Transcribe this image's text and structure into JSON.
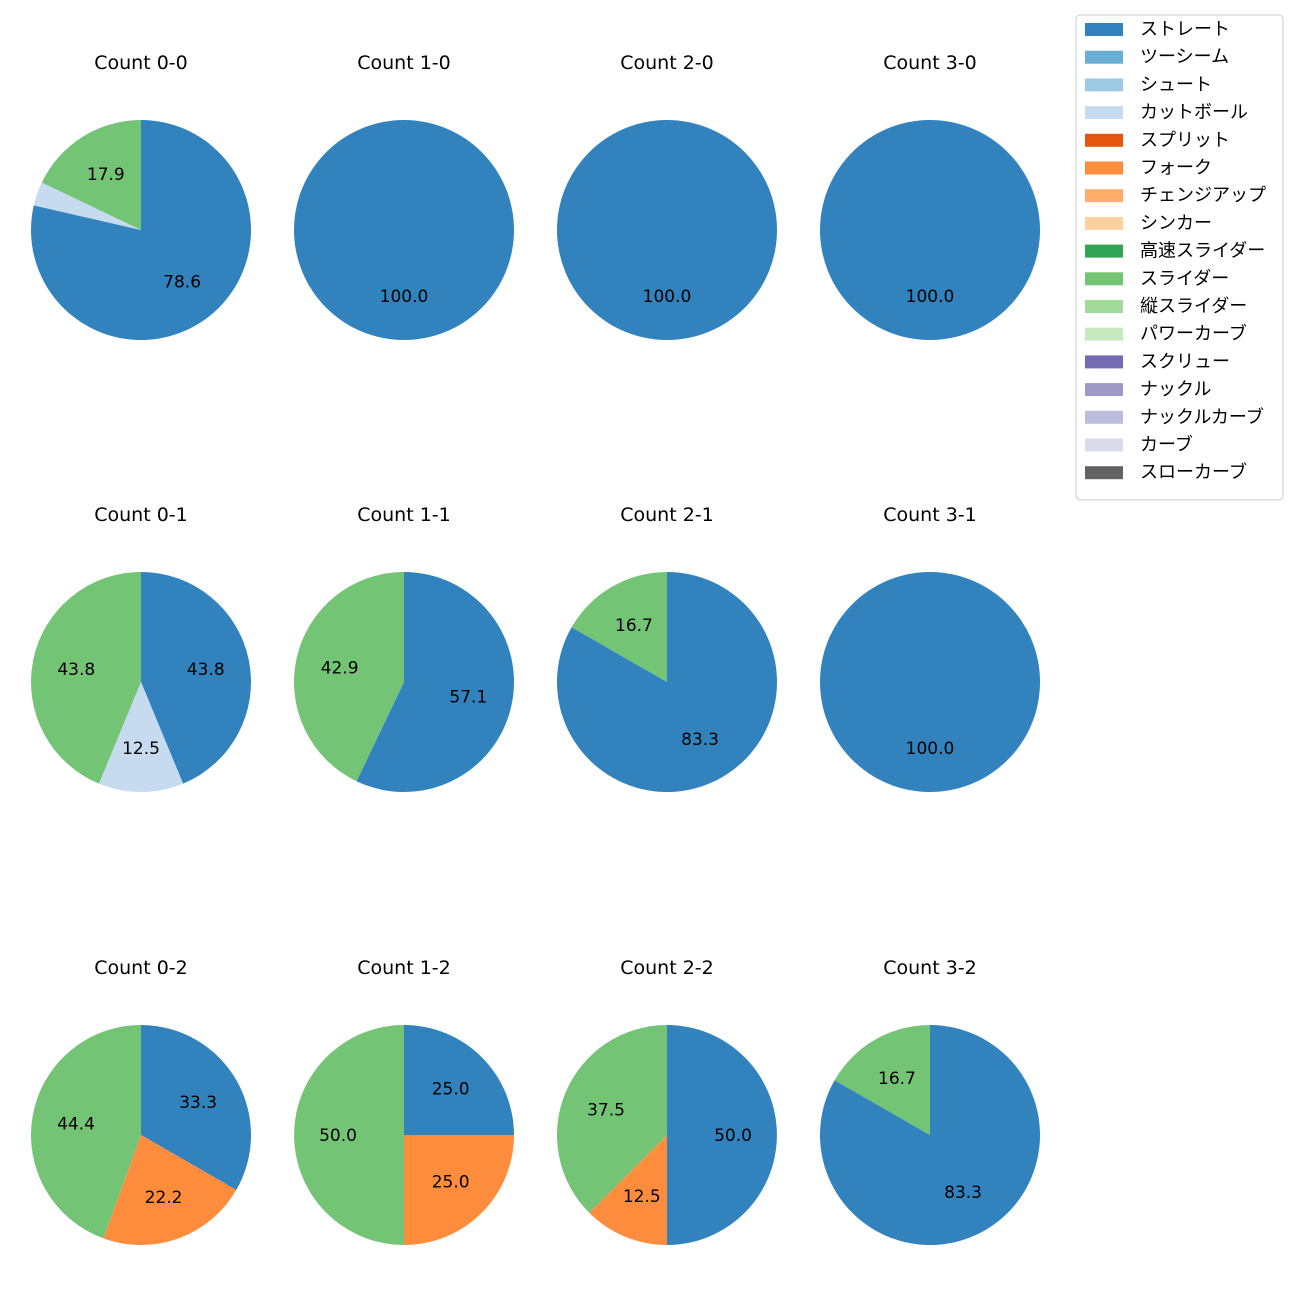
{
  "chart_data": {
    "type": "pie",
    "legend": {
      "placement": "top-right",
      "entries": [
        {
          "name": "ストレート",
          "color": "#3182bd"
        },
        {
          "name": "ツーシーム",
          "color": "#6baed6"
        },
        {
          "name": "シュート",
          "color": "#9ecae1"
        },
        {
          "name": "カットボール",
          "color": "#c6dbef"
        },
        {
          "name": "スプリット",
          "color": "#e6550d"
        },
        {
          "name": "フォーク",
          "color": "#fd8d3c"
        },
        {
          "name": "チェンジアップ",
          "color": "#fdae6b"
        },
        {
          "name": "シンカー",
          "color": "#fdd0a2"
        },
        {
          "name": "高速スライダー",
          "color": "#31a354"
        },
        {
          "name": "スライダー",
          "color": "#74c476"
        },
        {
          "name": "縦スライダー",
          "color": "#a1d99b"
        },
        {
          "name": "パワーカーブ",
          "color": "#c7e9c0"
        },
        {
          "name": "スクリュー",
          "color": "#756bb1"
        },
        {
          "name": "ナックル",
          "color": "#9e9ac8"
        },
        {
          "name": "ナックルカーブ",
          "color": "#bcbddc"
        },
        {
          "name": "カーブ",
          "color": "#dadaeb"
        },
        {
          "name": "スローカーブ",
          "color": "#636363"
        }
      ]
    },
    "pies": [
      {
        "title": "Count 0-0",
        "slices": [
          {
            "pitch": "ストレート",
            "value": 78.6,
            "label": "78.6"
          },
          {
            "pitch": "カットボール",
            "value": 3.5,
            "label": ""
          },
          {
            "pitch": "スライダー",
            "value": 17.9,
            "label": "17.9"
          }
        ]
      },
      {
        "title": "Count 1-0",
        "slices": [
          {
            "pitch": "ストレート",
            "value": 100.0,
            "label": "100.0"
          }
        ]
      },
      {
        "title": "Count 2-0",
        "slices": [
          {
            "pitch": "ストレート",
            "value": 100.0,
            "label": "100.0"
          }
        ]
      },
      {
        "title": "Count 3-0",
        "slices": [
          {
            "pitch": "ストレート",
            "value": 100.0,
            "label": "100.0"
          }
        ]
      },
      {
        "title": "Count 0-1",
        "slices": [
          {
            "pitch": "ストレート",
            "value": 43.8,
            "label": "43.8"
          },
          {
            "pitch": "カットボール",
            "value": 12.5,
            "label": "12.5"
          },
          {
            "pitch": "スライダー",
            "value": 43.8,
            "label": "43.8"
          }
        ]
      },
      {
        "title": "Count 1-1",
        "slices": [
          {
            "pitch": "ストレート",
            "value": 57.1,
            "label": "57.1"
          },
          {
            "pitch": "スライダー",
            "value": 42.9,
            "label": "42.9"
          }
        ]
      },
      {
        "title": "Count 2-1",
        "slices": [
          {
            "pitch": "ストレート",
            "value": 83.3,
            "label": "83.3"
          },
          {
            "pitch": "スライダー",
            "value": 16.7,
            "label": "16.7"
          }
        ]
      },
      {
        "title": "Count 3-1",
        "slices": [
          {
            "pitch": "ストレート",
            "value": 100.0,
            "label": "100.0"
          }
        ]
      },
      {
        "title": "Count 0-2",
        "slices": [
          {
            "pitch": "ストレート",
            "value": 33.3,
            "label": "33.3"
          },
          {
            "pitch": "フォーク",
            "value": 22.2,
            "label": "22.2"
          },
          {
            "pitch": "スライダー",
            "value": 44.4,
            "label": "44.4"
          }
        ]
      },
      {
        "title": "Count 1-2",
        "slices": [
          {
            "pitch": "ストレート",
            "value": 25.0,
            "label": "25.0"
          },
          {
            "pitch": "フォーク",
            "value": 25.0,
            "label": "25.0"
          },
          {
            "pitch": "スライダー",
            "value": 50.0,
            "label": "50.0"
          }
        ]
      },
      {
        "title": "Count 2-2",
        "slices": [
          {
            "pitch": "ストレート",
            "value": 50.0,
            "label": "50.0"
          },
          {
            "pitch": "フォーク",
            "value": 12.5,
            "label": "12.5"
          },
          {
            "pitch": "スライダー",
            "value": 37.5,
            "label": "37.5"
          }
        ]
      },
      {
        "title": "Count 3-2",
        "slices": [
          {
            "pitch": "ストレート",
            "value": 83.3,
            "label": "83.3"
          },
          {
            "pitch": "スライダー",
            "value": 16.7,
            "label": "16.7"
          }
        ]
      }
    ]
  }
}
